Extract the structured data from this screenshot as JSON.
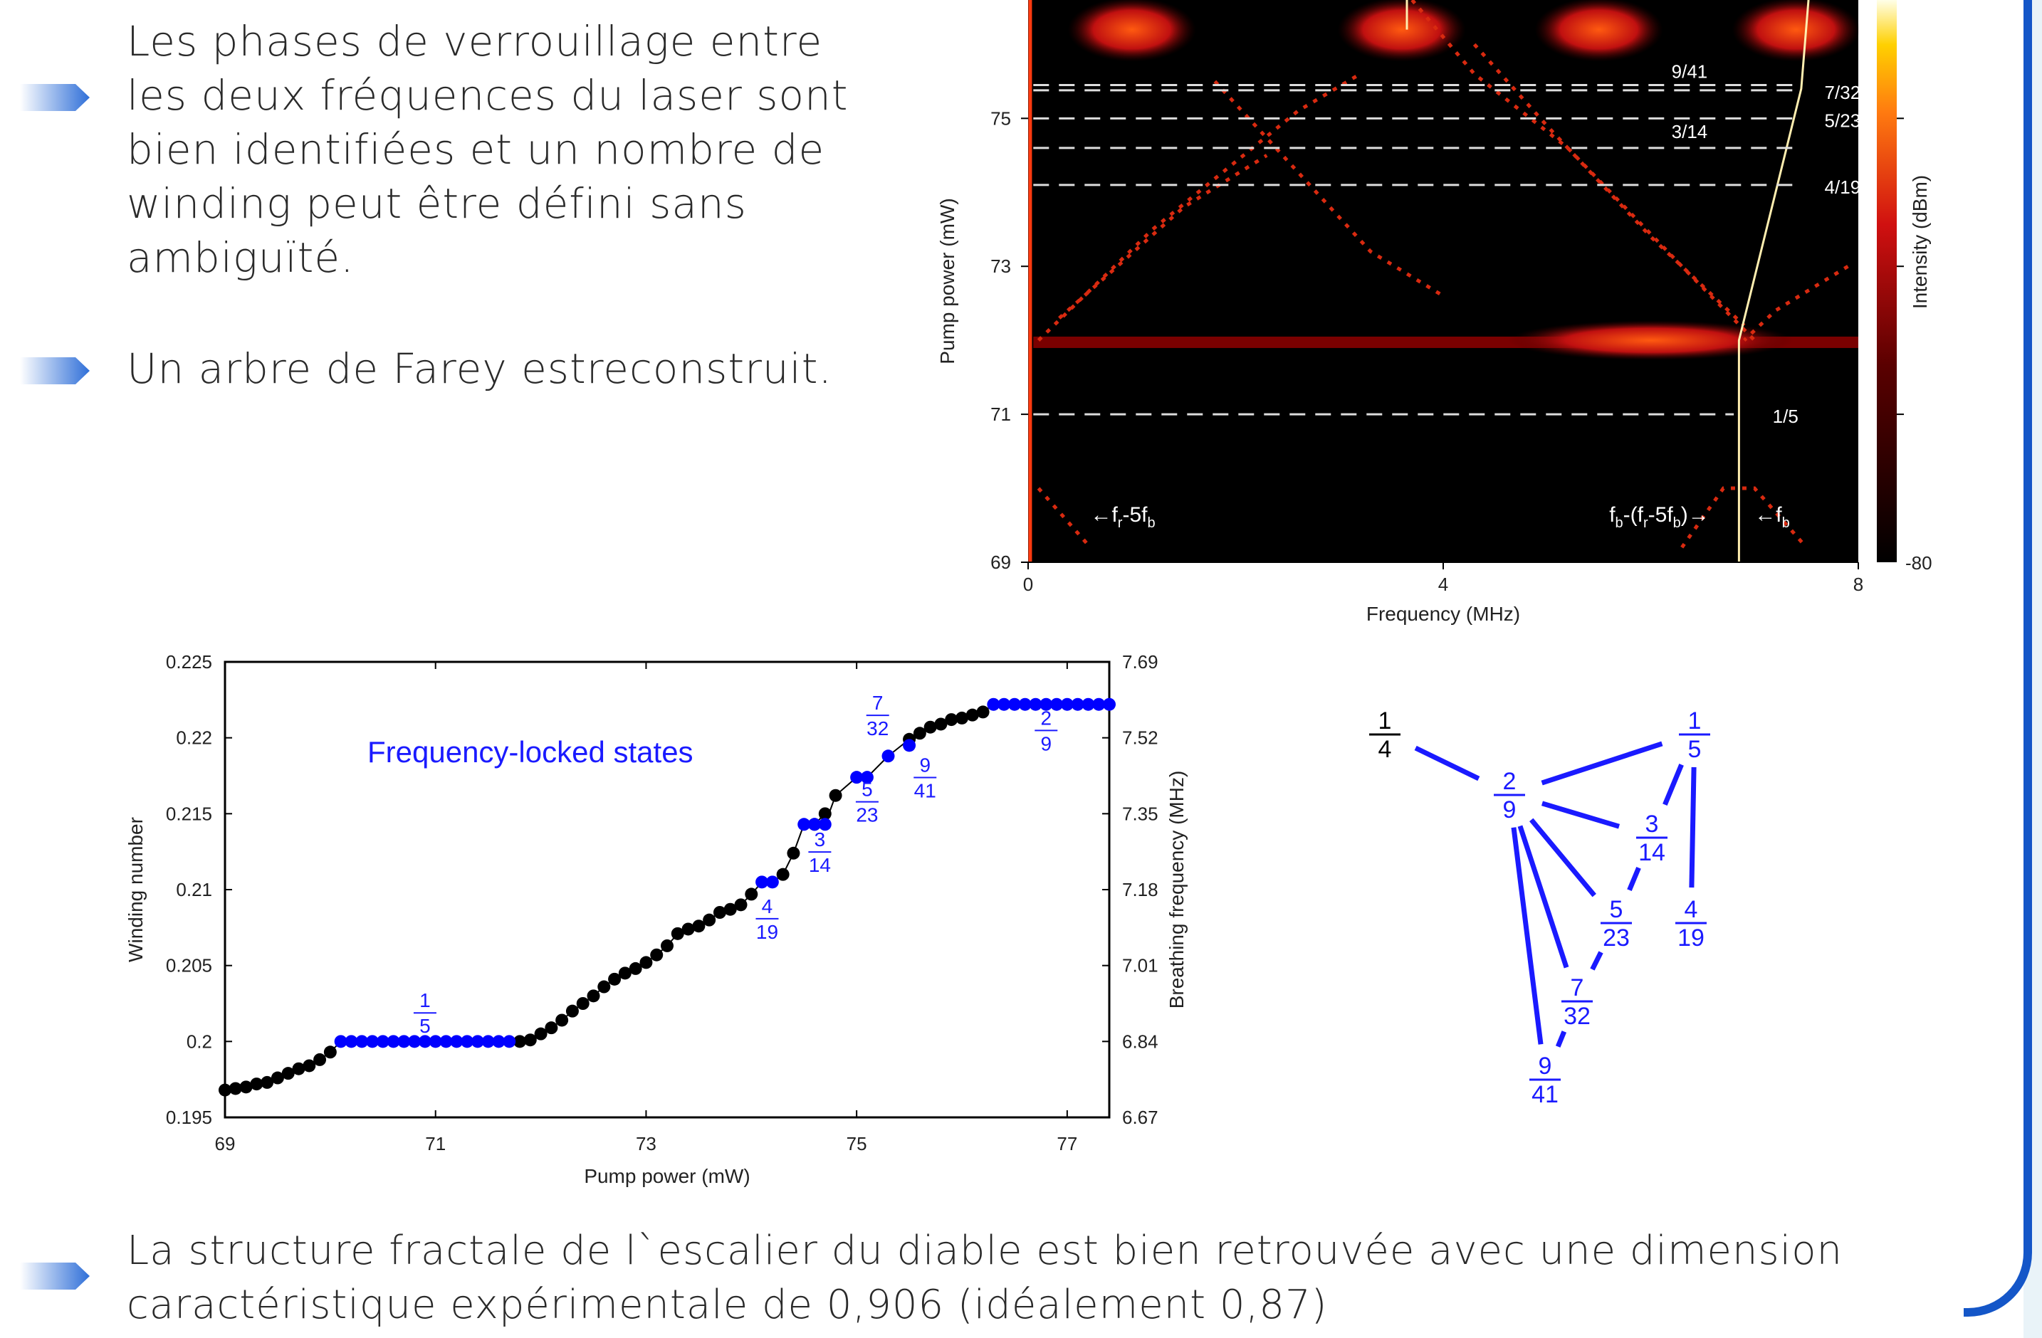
{
  "bullets": [
    "Les phases de verrouillage entre les deux fréquences du laser sont bien identifiées et un nombre de winding peut être défini sans ambiguïté.",
    "Un arbre de Farey estreconstruit.",
    "La structure fractale de l`escalier du diable est bien retrouvée avec une dimension caractéristique expérimentale de 0,906 (idéalement 0,87)"
  ],
  "accent_color": "#1456c8",
  "chart_data": [
    {
      "type": "heatmap",
      "xlabel": "Frequency (MHz)",
      "ylabel": "Pump power (mW)",
      "colorbar_label": "Intensity (dBm)",
      "colorbar_min_label": "-80",
      "xlim": [
        0,
        8
      ],
      "ylim": [
        69,
        76.6
      ],
      "xticks": [
        "0",
        "4",
        "8"
      ],
      "yticks": [
        "69",
        "71",
        "73",
        "75"
      ],
      "locked_states": [
        {
          "label": "9/41",
          "power": 75.45
        },
        {
          "label": "7/32",
          "power": 75.38
        },
        {
          "label": "5/23",
          "power": 75.0
        },
        {
          "label": "3/14",
          "power": 74.6
        },
        {
          "label": "4/19",
          "power": 74.1
        },
        {
          "label": "1/5",
          "power": 71.0
        }
      ],
      "annotations": [
        {
          "text": "f",
          "sub": "r",
          "rest": "-5f",
          "sub2": "b"
        },
        {
          "text": "f",
          "sub": "b",
          "rest": "-(f",
          "sub2": "r",
          "rest2": "-5f",
          "sub3": "b",
          "end": ")"
        },
        {
          "text": "f",
          "sub": "b"
        }
      ]
    },
    {
      "type": "scatter",
      "xlabel": "Pump power (mW)",
      "ylabel": "Winding number",
      "y2label": "Breathing frequency (MHz)",
      "annotation": "Frequency-locked states",
      "xlim": [
        69,
        77.4
      ],
      "ylim": [
        0.195,
        0.225
      ],
      "y2lim": [
        6.67,
        7.69
      ],
      "xticks": [
        "69",
        "71",
        "73",
        "75",
        "77"
      ],
      "yticks": [
        "0.195",
        "0.2",
        "0.205",
        "0.21",
        "0.215",
        "0.22",
        "0.225"
      ],
      "y2ticks": [
        "6.67",
        "6.84",
        "7.01",
        "7.18",
        "7.35",
        "7.52",
        "7.69"
      ],
      "series": [
        {
          "name": "unlocked",
          "color": "#000000",
          "x": [
            69.0,
            69.1,
            69.2,
            69.3,
            69.4,
            69.5,
            69.6,
            69.7,
            69.8,
            69.9,
            70.0,
            71.8,
            71.9,
            72.0,
            72.1,
            72.2,
            72.3,
            72.4,
            72.5,
            72.6,
            72.7,
            72.8,
            72.9,
            73.0,
            73.1,
            73.2,
            73.3,
            73.4,
            73.5,
            73.6,
            73.7,
            73.8,
            73.9,
            74.0,
            74.3,
            74.4,
            74.6,
            74.7,
            74.8,
            75.5,
            75.6,
            75.7,
            75.8,
            75.9,
            76.0,
            76.1,
            76.2
          ],
          "y": [
            0.1968,
            0.1969,
            0.197,
            0.1972,
            0.1973,
            0.1976,
            0.1979,
            0.1982,
            0.1984,
            0.1988,
            0.1993,
            0.2,
            0.2001,
            0.2005,
            0.2009,
            0.2014,
            0.202,
            0.2025,
            0.203,
            0.2036,
            0.2041,
            0.2045,
            0.2048,
            0.2052,
            0.2057,
            0.2063,
            0.2071,
            0.2074,
            0.2076,
            0.208,
            0.2085,
            0.2087,
            0.209,
            0.2097,
            0.211,
            0.2124,
            0.2143,
            0.215,
            0.2162,
            0.2199,
            0.2203,
            0.2207,
            0.2209,
            0.2212,
            0.2213,
            0.2215,
            0.2217
          ]
        },
        {
          "name": "locked",
          "color": "#0000ff",
          "x": [
            70.1,
            70.2,
            70.3,
            70.4,
            70.5,
            70.6,
            70.7,
            70.8,
            70.9,
            71.0,
            71.1,
            71.2,
            71.3,
            71.4,
            71.5,
            71.6,
            71.7,
            74.1,
            74.2,
            74.5,
            74.6,
            74.7,
            75.0,
            75.1,
            75.3,
            75.5,
            76.3,
            76.4,
            76.5,
            76.6,
            76.7,
            76.8,
            76.9,
            77.0,
            77.1,
            77.2,
            77.3,
            77.4
          ],
          "y": [
            0.2,
            0.2,
            0.2,
            0.2,
            0.2,
            0.2,
            0.2,
            0.2,
            0.2,
            0.2,
            0.2,
            0.2,
            0.2,
            0.2,
            0.2,
            0.2,
            0.2,
            0.2105,
            0.2105,
            0.2143,
            0.2143,
            0.2143,
            0.2174,
            0.2174,
            0.2188,
            0.2195,
            0.2222,
            0.2222,
            0.2222,
            0.2222,
            0.2222,
            0.2222,
            0.2222,
            0.2222,
            0.2222,
            0.2222,
            0.2222,
            0.2222
          ]
        }
      ],
      "fraction_labels": [
        {
          "num": "1",
          "den": "5",
          "x": 70.9,
          "y": 0.2016
        },
        {
          "num": "4",
          "den": "19",
          "x": 74.15,
          "y": 0.2078
        },
        {
          "num": "3",
          "den": "14",
          "x": 74.65,
          "y": 0.2122
        },
        {
          "num": "5",
          "den": "23",
          "x": 75.1,
          "y": 0.2155
        },
        {
          "num": "9",
          "den": "41",
          "x": 75.65,
          "y": 0.2171
        },
        {
          "num": "7",
          "den": "32",
          "x": 75.2,
          "y": 0.2212
        },
        {
          "num": "2",
          "den": "9",
          "x": 76.8,
          "y": 0.2202
        }
      ]
    }
  ],
  "farey_tree": {
    "nodes": [
      {
        "num": "1",
        "den": "4",
        "color": "#000000"
      },
      {
        "num": "1",
        "den": "5",
        "color": "#1a1aff"
      },
      {
        "num": "2",
        "den": "9",
        "color": "#1a1aff"
      },
      {
        "num": "3",
        "den": "14",
        "color": "#1a1aff"
      },
      {
        "num": "5",
        "den": "23",
        "color": "#1a1aff"
      },
      {
        "num": "4",
        "den": "19",
        "color": "#1a1aff"
      },
      {
        "num": "7",
        "den": "32",
        "color": "#1a1aff"
      },
      {
        "num": "9",
        "den": "41",
        "color": "#1a1aff"
      }
    ]
  }
}
